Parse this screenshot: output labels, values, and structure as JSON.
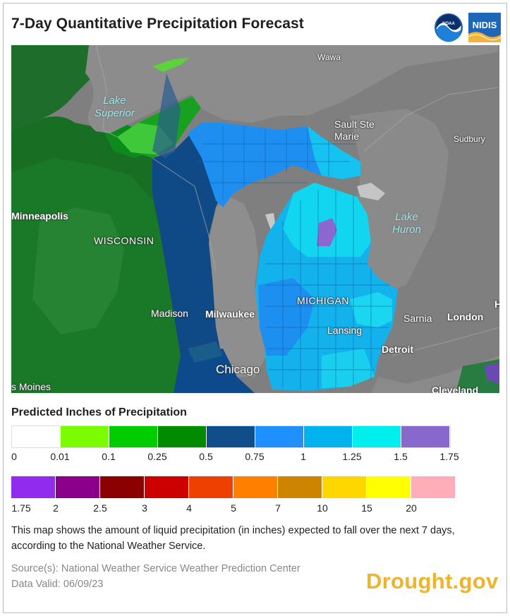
{
  "header": {
    "title": "7-Day Quantitative Precipitation Forecast",
    "logos": {
      "noaa": "NOAA",
      "nidis": "NIDIS"
    }
  },
  "map": {
    "labels": {
      "wawa": "Wawa",
      "lake_superior": "Lake\nSuperior",
      "sault_ste_marie": "Sault Ste\nMarie",
      "sudbury": "Sudbury",
      "minneapolis": "Minneapolis",
      "wisconsin": "WISCONSIN",
      "lake_huron": "Lake\nHuron",
      "madison": "Madison",
      "milwaukee": "Milwaukee",
      "michigan": "MICHIGAN",
      "sarnia": "Sarnia",
      "london": "London",
      "h_partial": "H",
      "lansing": "Lansing",
      "detroit": "Detroit",
      "chicago": "Chicago",
      "des_moines": "s Moines",
      "cleveland": "Cleveland"
    },
    "colors": {
      "land_base": "#808080",
      "water": "#8a8a8a",
      "green_dark": "#0f7a20",
      "green_mid": "#1f8f2a",
      "navy": "#0d4a8c",
      "blue": "#2a93f2",
      "lightblue": "#12b6ec",
      "cyan": "#15e4f2",
      "purple": "#8a6ad2",
      "lime": "#76f31a"
    }
  },
  "legend": {
    "title": "Predicted Inches of Precipitation",
    "row1": {
      "colors": [
        "#ffffff",
        "#7cfc00",
        "#00cd00",
        "#008b00",
        "#104e8b",
        "#1e90ff",
        "#00b2ee",
        "#00eeee",
        "#8968cd"
      ],
      "ticks": [
        "0",
        "0.01",
        "0.1",
        "0.25",
        "0.5",
        "0.75",
        "1",
        "1.25",
        "1.5",
        "1.75"
      ]
    },
    "row2": {
      "colors": [
        "#912cee",
        "#8b008b",
        "#8b0000",
        "#cd0000",
        "#ee4000",
        "#ff7f00",
        "#cd8500",
        "#ffd700",
        "#ffff00",
        "#ffaeb9"
      ],
      "ticks": [
        "1.75",
        "2",
        "2.5",
        "3",
        "4",
        "5",
        "7",
        "10",
        "15",
        "20"
      ]
    }
  },
  "description": "This map shows the amount of liquid precipitation (in inches) expected to fall over the next 7 days, according to the National Weather Service.",
  "source": {
    "line1": "Source(s): National Weather Service Weather Prediction Center",
    "line2": "Data Valid: 06/09/23"
  },
  "brand": "Drought.gov"
}
